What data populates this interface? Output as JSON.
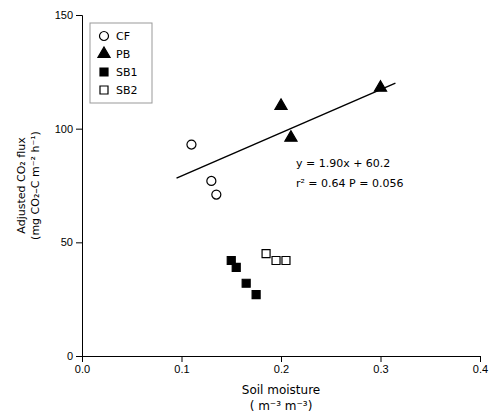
{
  "chart_data": {
    "type": "scatter",
    "color": "#000000",
    "x_label": "Soil moisture\n( m⁻³ m⁻³)",
    "y_label": "Adjusted CO₂ flux\n(mg CO₂–C m⁻² h⁻¹)",
    "xlim": [
      0,
      0.4
    ],
    "ylim": [
      0,
      150
    ],
    "xticks": [
      {
        "value": 0,
        "label": "0.0"
      },
      0.1,
      0.2,
      0.3,
      0.4
    ],
    "yticks": [
      0,
      50,
      100,
      150
    ],
    "grid": false,
    "legend": "upper left",
    "series": [
      {
        "name": "CF",
        "marker": "circle-open",
        "x": [
          0.11,
          0.13,
          0.135
        ],
        "values": [
          93,
          77,
          71
        ]
      },
      {
        "name": "PB",
        "marker": "triangle",
        "x": [
          0.2,
          0.21,
          0.3
        ],
        "values": [
          110,
          96,
          118
        ]
      },
      {
        "name": "SB1",
        "marker": "square",
        "x": [
          0.15,
          0.155,
          0.165,
          0.175
        ],
        "values": [
          42,
          39,
          32,
          27
        ]
      },
      {
        "name": "SB2",
        "marker": "square-open",
        "x": [
          0.185,
          0.195,
          0.205
        ],
        "values": [
          45,
          42,
          42
        ]
      },
      {
        "type": "line",
        "line_style": "solid",
        "x": [
          0.095,
          0.315
        ],
        "values": [
          78.25,
          120.05
        ]
      }
    ],
    "annotations": [
      {
        "text": "y = 1.90x + 60.2",
        "x": 0.215,
        "y": 85
      },
      {
        "text": "r² = 0.64  P = 0.056",
        "x": 0.215,
        "y": 76
      }
    ]
  }
}
